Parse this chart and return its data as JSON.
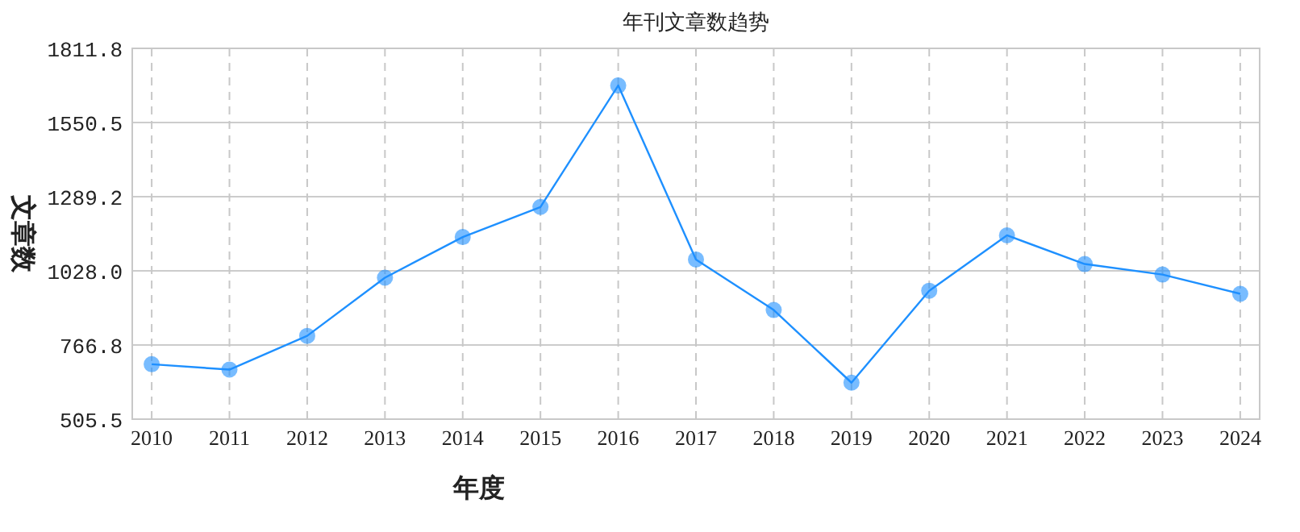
{
  "chart_data": {
    "type": "line",
    "title": "年刊文章数趋势",
    "xlabel": "年度",
    "ylabel": "文章数",
    "categories": [
      "2010",
      "2011",
      "2012",
      "2013",
      "2014",
      "2015",
      "2016",
      "2017",
      "2018",
      "2019",
      "2020",
      "2021",
      "2022",
      "2023",
      "2024"
    ],
    "series": [
      {
        "color": "#1e90ff",
        "values": [
          699,
          680,
          799,
          1004,
          1147,
          1253,
          1681,
          1068,
          890,
          634,
          958,
          1153,
          1052,
          1015,
          947
        ]
      }
    ],
    "ylim": [
      505.5,
      1811.8
    ],
    "yticks": [
      {
        "value": 505.5,
        "label": "505.5"
      },
      {
        "value": 766.8,
        "label": "766.8"
      },
      {
        "value": 1028.0,
        "label": "1028.0"
      },
      {
        "value": 1289.2,
        "label": "1289.2"
      },
      {
        "value": 1550.5,
        "label": "1550.5"
      },
      {
        "value": 1811.8,
        "label": "1811.8"
      }
    ],
    "grid": true,
    "marker": "circle",
    "line_style": "solid"
  }
}
